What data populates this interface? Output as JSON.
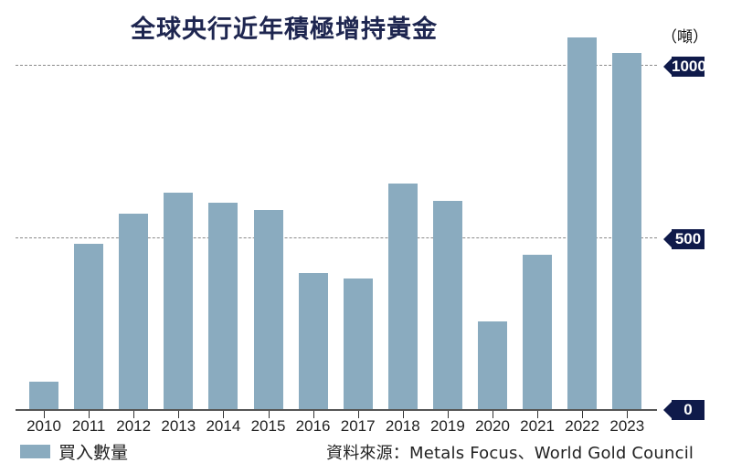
{
  "title": "全球央行近年積極增持黃金",
  "unit_label": "（噸）",
  "legend": {
    "label": "買入數量",
    "color": "#8aabbf"
  },
  "source": "資料來源：Metals Focus、World Gold Council",
  "y_ticks": [
    {
      "label": "1000",
      "value": 1000
    },
    {
      "label": "500",
      "value": 500
    },
    {
      "label": "0",
      "value": 0
    }
  ],
  "chart_data": {
    "type": "bar",
    "title": "全球央行近年積極增持黃金",
    "xlabel": "",
    "ylabel": "噸",
    "categories": [
      "2010",
      "2011",
      "2012",
      "2013",
      "2014",
      "2015",
      "2016",
      "2017",
      "2018",
      "2019",
      "2020",
      "2021",
      "2022",
      "2023"
    ],
    "series": [
      {
        "name": "買入數量",
        "color": "#8aabbf",
        "values": [
          79,
          481,
          569,
          629,
          601,
          580,
          395,
          379,
          656,
          605,
          255,
          450,
          1082,
          1037
        ]
      }
    ],
    "ylim": [
      0,
      1100
    ],
    "yticks": [
      0,
      500,
      1000
    ],
    "grid": "horizontal dashed at 500 and 1000",
    "legend_position": "bottom-left",
    "y_axis_position": "right",
    "annotations": [
      "資料來源：Metals Focus、World Gold Council"
    ]
  }
}
